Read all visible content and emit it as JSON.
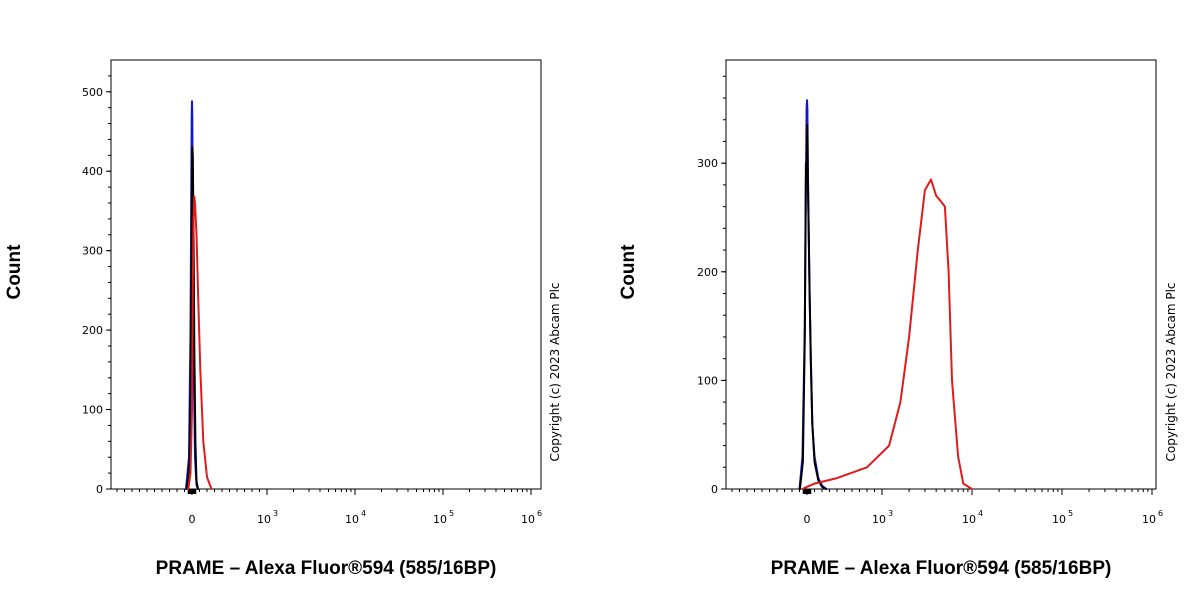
{
  "colors": {
    "blue": "#1414d2",
    "black": "#000000",
    "red": "#e01b1b"
  },
  "chart_data": [
    {
      "type": "line",
      "xlabel": "PRAME – Alexa Fluor®594 (585/16BP)",
      "ylabel": "Count",
      "ylim": [
        0,
        540
      ],
      "x_scale": "biexponential",
      "x_tick_labels": [
        "0",
        "10",
        "10",
        "10",
        "10"
      ],
      "x_tick_exponents": [
        "",
        "3",
        "4",
        "5",
        "6"
      ],
      "y_ticks": [
        0,
        100,
        200,
        300,
        400,
        500
      ],
      "y_tick_labels": [
        "0",
        "100",
        "200",
        "300",
        "400",
        "500"
      ],
      "copyright": "Copyright (c) 2023 Abcam Plc",
      "series": [
        {
          "color": "#1414d2",
          "x": [
            -80,
            -40,
            -20,
            -8,
            -4,
            0,
            4,
            8,
            15,
            25,
            40,
            60,
            80
          ],
          "y": [
            0,
            40,
            200,
            400,
            470,
            488,
            470,
            400,
            280,
            140,
            40,
            5,
            0
          ]
        },
        {
          "color": "#000000",
          "x": [
            -70,
            -35,
            -15,
            -5,
            0,
            5,
            10,
            15,
            22,
            30,
            45,
            60,
            80
          ],
          "y": [
            0,
            30,
            150,
            300,
            400,
            430,
            420,
            380,
            300,
            180,
            60,
            10,
            0
          ]
        },
        {
          "color": "#e01b1b",
          "x": [
            -50,
            -20,
            0,
            10,
            20,
            30,
            40,
            60,
            80,
            110,
            150,
            200,
            260
          ],
          "y": [
            0,
            20,
            100,
            250,
            340,
            368,
            360,
            320,
            250,
            150,
            60,
            15,
            0
          ]
        }
      ]
    },
    {
      "type": "line",
      "xlabel": "PRAME – Alexa Fluor®594 (585/16BP)",
      "ylabel": "Count",
      "ylim": [
        0,
        395
      ],
      "x_scale": "biexponential",
      "x_tick_labels": [
        "0",
        "10",
        "10",
        "10",
        "10"
      ],
      "x_tick_exponents": [
        "",
        "3",
        "4",
        "5",
        "6"
      ],
      "y_ticks": [
        0,
        100,
        200,
        300
      ],
      "y_tick_labels": [
        "0",
        "100",
        "200",
        "300"
      ],
      "copyright": "Copyright (c) 2023 Abcam Plc",
      "series": [
        {
          "color": "#1414d2",
          "x": [
            -100,
            -60,
            -30,
            -15,
            -5,
            0,
            5,
            10,
            20,
            35,
            50,
            70,
            100,
            150,
            200,
            260
          ],
          "y": [
            0,
            30,
            150,
            280,
            350,
            358,
            350,
            300,
            250,
            180,
            120,
            60,
            30,
            10,
            3,
            0
          ]
        },
        {
          "color": "#000000",
          "x": [
            -95,
            -55,
            -30,
            -15,
            -5,
            0,
            5,
            10,
            20,
            35,
            50,
            70,
            100,
            150,
            200,
            250
          ],
          "y": [
            0,
            25,
            140,
            300,
            290,
            320,
            335,
            290,
            250,
            180,
            120,
            60,
            25,
            8,
            2,
            0
          ]
        },
        {
          "color": "#e01b1b",
          "x": [
            -60,
            0,
            100,
            400,
            800,
            1200,
            1600,
            2000,
            2500,
            3000,
            3500,
            4000,
            4500,
            5000,
            5500,
            6000,
            7000,
            8000,
            10000
          ],
          "y": [
            0,
            2,
            5,
            10,
            20,
            40,
            80,
            140,
            220,
            275,
            285,
            270,
            265,
            260,
            200,
            100,
            30,
            5,
            0
          ]
        }
      ]
    }
  ]
}
